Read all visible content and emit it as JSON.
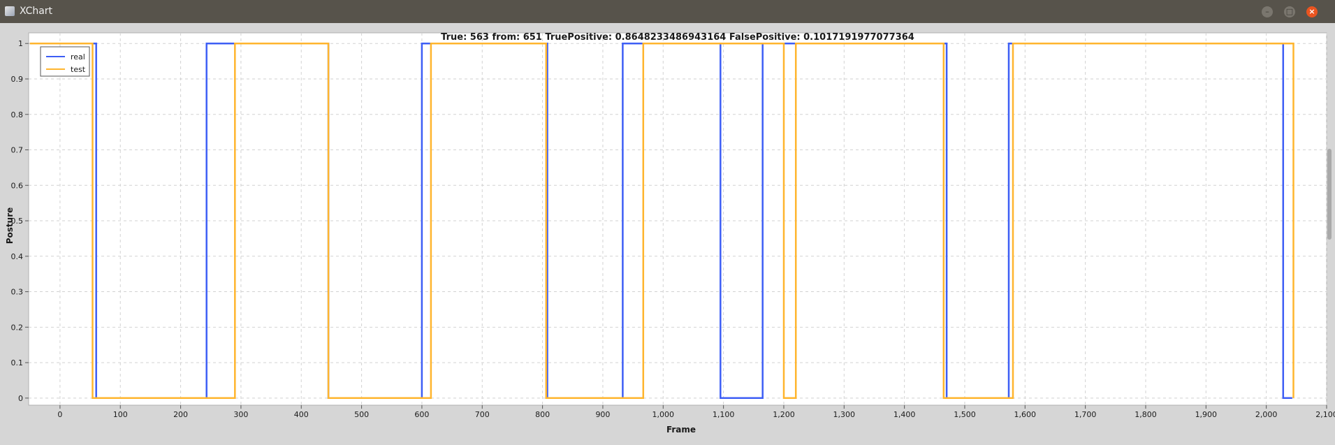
{
  "window": {
    "title": "XChart"
  },
  "chart_data": {
    "type": "line",
    "title": "True: 563 from: 651 TruePositive: 0.8648233486943164 FalsePositive: 0.1017191977077364",
    "xlabel": "Frame",
    "ylabel": "Posture",
    "xlim": [
      -52,
      2100
    ],
    "ylim": [
      -0.02,
      1.03
    ],
    "x_ticks": [
      0,
      100,
      200,
      300,
      400,
      500,
      600,
      700,
      800,
      900,
      1000,
      1100,
      1200,
      1300,
      1400,
      1500,
      1600,
      1700,
      1800,
      1900,
      2000,
      2100
    ],
    "x_tick_labels": [
      "0",
      "100",
      "200",
      "300",
      "400",
      "500",
      "600",
      "700",
      "800",
      "900",
      "1,000",
      "1,100",
      "1,200",
      "1,300",
      "1,400",
      "1,500",
      "1,600",
      "1,700",
      "1,800",
      "1,900",
      "2,000",
      "2,100"
    ],
    "y_ticks": [
      0,
      0.1,
      0.2,
      0.3,
      0.4,
      0.5,
      0.6,
      0.7,
      0.8,
      0.9,
      1
    ],
    "y_tick_labels": [
      "0",
      "0.1",
      "0.2",
      "0.3",
      "0.4",
      "0.5",
      "0.6",
      "0.7",
      "0.8",
      "0.9",
      "1"
    ],
    "grid": true,
    "legend_position": "top-left",
    "series": [
      {
        "name": "real",
        "color": "#3d5ef5",
        "x": [
          -50,
          60,
          60,
          243,
          243,
          445,
          445,
          600,
          600,
          808,
          808,
          933,
          933,
          1095,
          1095,
          1165,
          1165,
          1220,
          1220,
          1470,
          1470,
          1573,
          1573,
          2028,
          2028,
          2043
        ],
        "y": [
          1,
          1,
          0,
          0,
          1,
          1,
          0,
          0,
          1,
          1,
          0,
          0,
          1,
          1,
          0,
          0,
          1,
          1,
          1,
          1,
          0,
          0,
          1,
          1,
          0,
          0
        ]
      },
      {
        "name": "test",
        "color": "#ffb52e",
        "x": [
          -50,
          54,
          54,
          290,
          290,
          445,
          445,
          615,
          615,
          806,
          806,
          967,
          967,
          1200,
          1200,
          1220,
          1220,
          1465,
          1465,
          1580,
          1580,
          2045,
          2045
        ],
        "y": [
          1,
          1,
          0,
          0,
          1,
          1,
          0,
          0,
          1,
          1,
          0,
          0,
          1,
          1,
          0,
          0,
          1,
          1,
          0,
          0,
          1,
          1,
          0
        ]
      }
    ]
  }
}
